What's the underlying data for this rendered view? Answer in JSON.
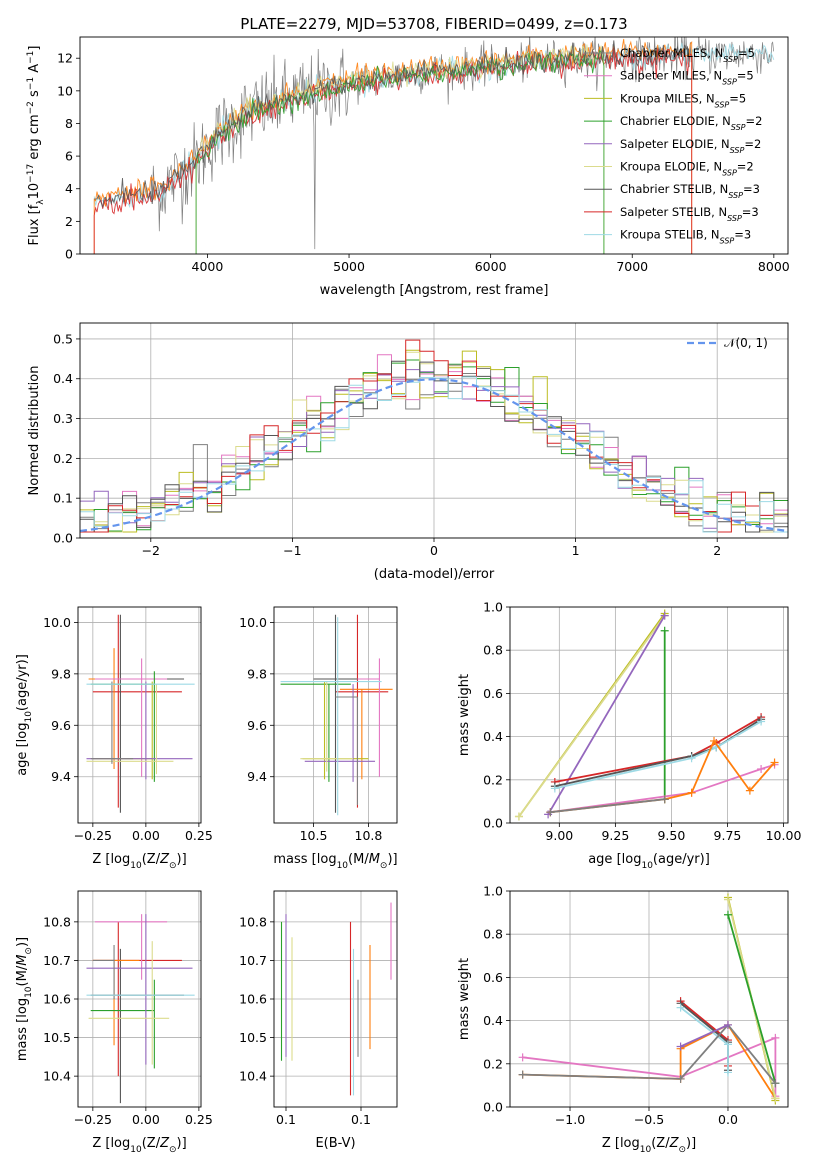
{
  "figure_title": "PLATE=2279, MJD=53708, FIBERID=0499, z=0.173",
  "colors": {
    "Chabrier MILES": "#7f7f7f",
    "Salpeter MILES": "#e377c2",
    "Kroupa MILES": "#bcbd22",
    "Chabrier ELODIE": "#2ca02c",
    "Salpeter ELODIE": "#9467bd",
    "Kroupa ELODIE": "#dbdb8d",
    "Chabrier STELIB": "#555555",
    "Salpeter STELIB": "#d62728",
    "Kroupa STELIB": "#9edae5",
    "extra_orange": "#ff7f0e",
    "normal": "#6495ed"
  },
  "chart_data": [
    {
      "id": "spectrum",
      "type": "line",
      "xlabel": "wavelength [Angstrom, rest frame]",
      "ylabel": "Flux [f_λ10^-17 erg cm^-2 s^-1 A^-1]",
      "xlim": [
        3100,
        8100
      ],
      "ylim": [
        0,
        13.3
      ],
      "xticks": [
        4000,
        5000,
        6000,
        7000,
        8000
      ],
      "yticks": [
        0,
        2,
        4,
        6,
        8,
        10,
        12
      ],
      "legend_position": "top-right",
      "legend": [
        "Chabrier MILES, N_SSP=5",
        "Salpeter MILES, N_SSP=5",
        "Kroupa MILES, N_SSP=5",
        "Chabrier ELODIE, N_SSP=2",
        "Salpeter ELODIE, N_SSP=2",
        "Kroupa ELODIE, N_SSP=2",
        "Chabrier STELIB, N_SSP=3",
        "Salpeter STELIB, N_SSP=3",
        "Kroupa STELIB, N_SSP=3"
      ],
      "continuum": {
        "x": [
          3200,
          3500,
          3650,
          3800,
          3950,
          4100,
          4300,
          4500,
          4800,
          5100,
          5500,
          5900,
          6300,
          6700,
          7000,
          7400,
          7800,
          8000
        ],
        "y": [
          3.2,
          3.5,
          3.8,
          4.8,
          6.0,
          7.5,
          8.7,
          9.3,
          10.0,
          10.6,
          11.1,
          11.4,
          11.8,
          12.0,
          12.1,
          12.2,
          12.3,
          12.3
        ]
      }
    },
    {
      "id": "residuals",
      "type": "line",
      "xlabel": "(data-model)/error",
      "ylabel": "Normed distribution",
      "xlim": [
        -2.5,
        2.5
      ],
      "ylim": [
        0,
        0.54
      ],
      "xticks": [
        -2,
        -1,
        0,
        1,
        2
      ],
      "yticks": [
        0.0,
        0.1,
        0.2,
        0.3,
        0.4,
        0.5
      ],
      "grid": true,
      "legend_position": "top-right",
      "legend": [
        "𝒩(0, 1)"
      ],
      "bin_width": 0.1
    },
    {
      "id": "age-vs-z",
      "type": "scatter",
      "xlabel": "Z [log10(Z/Z⊙)]",
      "ylabel": "age  [log10(age/yr)]",
      "xlim": [
        -0.32,
        0.26
      ],
      "ylim": [
        9.22,
        10.06
      ],
      "xticks": [
        -0.25,
        0.0,
        0.25
      ],
      "yticks": [
        9.4,
        9.6,
        9.8,
        10.0
      ],
      "grid": true,
      "points": [
        {
          "x": -0.13,
          "y": 9.73,
          "xerr": [
            0.12,
            0.3
          ],
          "yerr": [
            0.45,
            0.3
          ],
          "c": "Salpeter STELIB"
        },
        {
          "x": -0.12,
          "y": 9.78,
          "xerr": [
            0.14,
            0.3
          ],
          "yerr": [
            0.52,
            0.25
          ],
          "c": "Chabrier STELIB"
        },
        {
          "x": -0.15,
          "y": 9.78,
          "xerr": [
            0.12,
            0.12
          ],
          "yerr": [
            0.35,
            0.12
          ],
          "c": "extra_orange"
        },
        {
          "x": -0.02,
          "y": 9.78,
          "xerr": [
            0.22,
            0.12
          ],
          "yerr": [
            0.38,
            0.08
          ],
          "c": "Salpeter MILES"
        },
        {
          "x": 0.04,
          "y": 9.76,
          "xerr": [
            0.3,
            0.0
          ],
          "yerr": [
            0.38,
            0.05
          ],
          "c": "Chabrier ELODIE"
        },
        {
          "x": 0.03,
          "y": 9.47,
          "xerr": [
            0.28,
            0.0
          ],
          "yerr": [
            0.08,
            0.3
          ],
          "c": "Kroupa MILES"
        },
        {
          "x": 0.0,
          "y": 9.47,
          "xerr": [
            0.28,
            0.22
          ],
          "yerr": [
            0.08,
            0.3
          ],
          "c": "Salpeter ELODIE"
        },
        {
          "x": 0.05,
          "y": 9.46,
          "xerr": [
            0.33,
            0.08
          ],
          "yerr": [
            0.05,
            0.3
          ],
          "c": "Kroupa ELODIE"
        },
        {
          "x": -0.16,
          "y": 9.47,
          "xerr": [
            0.1,
            0.1
          ],
          "yerr": [
            0.02,
            0.3
          ],
          "c": "Chabrier MILES"
        },
        {
          "x": -0.12,
          "y": 9.76,
          "xerr": [
            0.16,
            0.35
          ],
          "yerr": [
            0.0,
            0.0
          ],
          "c": "Kroupa STELIB"
        }
      ]
    },
    {
      "id": "age-vs-mass",
      "type": "scatter",
      "xlabel": "mass [log10(M/M⊙)]",
      "ylabel": "",
      "xlim": [
        10.32,
        10.88
      ],
      "ylim": [
        9.22,
        10.06
      ],
      "xticks": [
        10.5,
        10.75
      ],
      "yticks": [
        9.4,
        9.6,
        9.8,
        10.0
      ],
      "grid": true,
      "points": [
        {
          "x": 10.7,
          "y": 9.73,
          "xerr": [
            0.1,
            0.14
          ],
          "yerr": [
            0.45,
            0.3
          ],
          "c": "Salpeter STELIB"
        },
        {
          "x": 10.6,
          "y": 9.78,
          "xerr": [
            0.1,
            0.14
          ],
          "yerr": [
            0.52,
            0.25
          ],
          "c": "Chabrier STELIB"
        },
        {
          "x": 10.72,
          "y": 9.74,
          "xerr": [
            0.1,
            0.14
          ],
          "yerr": [
            0.35,
            0.0
          ],
          "c": "extra_orange"
        },
        {
          "x": 10.8,
          "y": 9.78,
          "xerr": [
            0.1,
            0.0
          ],
          "yerr": [
            0.38,
            0.08
          ],
          "c": "Salpeter MILES"
        },
        {
          "x": 10.57,
          "y": 9.76,
          "xerr": [
            0.22,
            0.1
          ],
          "yerr": [
            0.38,
            0.0
          ],
          "c": "Chabrier ELODIE"
        },
        {
          "x": 10.55,
          "y": 9.47,
          "xerr": [
            0.1,
            0.2
          ],
          "yerr": [
            0.08,
            0.3
          ],
          "c": "Kroupa MILES"
        },
        {
          "x": 10.68,
          "y": 9.46,
          "xerr": [
            0.22,
            0.1
          ],
          "yerr": [
            0.08,
            0.3
          ],
          "c": "Salpeter ELODIE"
        },
        {
          "x": 10.56,
          "y": 9.47,
          "xerr": [
            0.12,
            0.12
          ],
          "yerr": [
            0.05,
            0.3
          ],
          "c": "Kroupa ELODIE"
        },
        {
          "x": 10.61,
          "y": 9.77,
          "xerr": [
            0.26,
            0.2
          ],
          "yerr": [
            0.52,
            0.25
          ],
          "c": "Kroupa STELIB"
        },
        {
          "x": 10.7,
          "y": 9.71,
          "xerr": [
            0.1,
            0.0
          ],
          "yerr": [
            0.42,
            0.0
          ],
          "c": "Chabrier MILES"
        }
      ]
    },
    {
      "id": "weight-vs-age",
      "type": "line",
      "xlabel": "age  [log10(age/yr)]",
      "ylabel": "mass weight",
      "xlim": [
        8.78,
        10.02
      ],
      "ylim": [
        0,
        1.0
      ],
      "xticks": [
        9.0,
        9.25,
        9.5,
        9.75,
        10.0
      ],
      "yticks": [
        0.0,
        0.2,
        0.4,
        0.6,
        0.8,
        1.0
      ],
      "grid": true,
      "series": [
        {
          "c": "Kroupa MILES",
          "x": [
            8.82,
            9.47
          ],
          "y": [
            0.03,
            0.97
          ]
        },
        {
          "c": "Kroupa ELODIE",
          "x": [
            8.82,
            9.47
          ],
          "y": [
            0.03,
            0.96
          ]
        },
        {
          "c": "Salpeter ELODIE",
          "x": [
            8.95,
            9.47
          ],
          "y": [
            0.04,
            0.96
          ]
        },
        {
          "c": "Chabrier ELODIE",
          "x": [
            9.47,
            9.47
          ],
          "y": [
            0.11,
            0.89
          ]
        },
        {
          "c": "Salpeter STELIB",
          "x": [
            8.98,
            9.59,
            9.7,
            9.9
          ],
          "y": [
            0.19,
            0.31,
            0.37,
            0.49
          ]
        },
        {
          "c": "Chabrier STELIB",
          "x": [
            8.98,
            9.59,
            9.7,
            9.9
          ],
          "y": [
            0.17,
            0.31,
            0.35,
            0.48
          ]
        },
        {
          "c": "Kroupa STELIB",
          "x": [
            8.98,
            9.59,
            9.7,
            9.9
          ],
          "y": [
            0.16,
            0.3,
            0.35,
            0.47
          ]
        },
        {
          "c": "Salpeter MILES",
          "x": [
            8.96,
            9.59,
            9.9,
            9.96
          ],
          "y": [
            0.05,
            0.14,
            0.25,
            0.27
          ]
        },
        {
          "c": "extra_orange",
          "x": [
            8.96,
            9.47,
            9.59,
            9.69,
            9.85,
            9.96
          ],
          "y": [
            0.05,
            0.11,
            0.14,
            0.38,
            0.15,
            0.28
          ]
        },
        {
          "c": "Chabrier MILES",
          "x": [
            8.96,
            9.47
          ],
          "y": [
            0.05,
            0.11
          ]
        }
      ]
    },
    {
      "id": "mass-vs-z",
      "type": "scatter",
      "xlabel": "Z [log10(Z/Z⊙)]",
      "ylabel": "mass [log10(M/M⊙)]",
      "xlim": [
        -0.32,
        0.26
      ],
      "ylim": [
        10.32,
        10.88
      ],
      "xticks": [
        -0.25,
        0.0,
        0.25
      ],
      "yticks": [
        10.4,
        10.5,
        10.6,
        10.7,
        10.8
      ],
      "grid": true,
      "points": [
        {
          "x": -0.13,
          "y": 10.7,
          "xerr": [
            0.12,
            0.3
          ],
          "yerr": [
            0.3,
            0.1
          ],
          "c": "Salpeter STELIB"
        },
        {
          "x": -0.12,
          "y": 10.61,
          "xerr": [
            0.14,
            0.3
          ],
          "yerr": [
            0.28,
            0.12
          ],
          "c": "Chabrier STELIB"
        },
        {
          "x": -0.15,
          "y": 10.7,
          "xerr": [
            0.1,
            0.12
          ],
          "yerr": [
            0.22,
            0.0
          ],
          "c": "extra_orange"
        },
        {
          "x": -0.02,
          "y": 10.8,
          "xerr": [
            0.22,
            0.12
          ],
          "yerr": [
            0.15,
            0.02
          ],
          "c": "Salpeter MILES"
        },
        {
          "x": 0.04,
          "y": 10.57,
          "xerr": [
            0.3,
            0.0
          ],
          "yerr": [
            0.15,
            0.08
          ],
          "c": "Chabrier ELODIE"
        },
        {
          "x": 0.0,
          "y": 10.68,
          "xerr": [
            0.28,
            0.22
          ],
          "yerr": [
            0.25,
            0.14
          ],
          "c": "Salpeter ELODIE"
        },
        {
          "x": 0.03,
          "y": 10.55,
          "xerr": [
            0.3,
            0.08
          ],
          "yerr": [
            0.12,
            0.2
          ],
          "c": "Kroupa ELODIE"
        },
        {
          "x": -0.15,
          "y": 10.7,
          "xerr": [
            0.1,
            0.0
          ],
          "yerr": [
            0.1,
            0.04
          ],
          "c": "Chabrier MILES"
        },
        {
          "x": -0.12,
          "y": 10.61,
          "xerr": [
            0.16,
            0.35
          ],
          "yerr": [
            0.0,
            0.0
          ],
          "c": "Kroupa STELIB"
        }
      ]
    },
    {
      "id": "mass-vs-ebv",
      "type": "scatter",
      "xlabel": "E(B-V)",
      "ylabel": "",
      "xlim": [
        0.092,
        0.174
      ],
      "ylim": [
        10.32,
        10.88
      ],
      "xticks": [
        0.1,
        0.15
      ],
      "yticks": [
        10.4,
        10.5,
        10.6,
        10.7,
        10.8
      ],
      "grid": true,
      "points": [
        {
          "x": 0.097,
          "y": 10.6,
          "yerr": [
            0.16,
            0.2
          ],
          "c": "Chabrier ELODIE"
        },
        {
          "x": 0.1,
          "y": 10.7,
          "yerr": [
            0.25,
            0.12
          ],
          "c": "Salpeter ELODIE"
        },
        {
          "x": 0.104,
          "y": 10.6,
          "yerr": [
            0.16,
            0.16
          ],
          "c": "Kroupa ELODIE"
        },
        {
          "x": 0.143,
          "y": 10.6,
          "yerr": [
            0.25,
            0.2
          ],
          "c": "Salpeter STELIB"
        },
        {
          "x": 0.145,
          "y": 10.55,
          "yerr": [
            0.2,
            0.18
          ],
          "c": "Kroupa STELIB"
        },
        {
          "x": 0.148,
          "y": 10.55,
          "yerr": [
            0.1,
            0.1
          ],
          "c": "Chabrier MILES"
        },
        {
          "x": 0.156,
          "y": 10.62,
          "yerr": [
            0.15,
            0.12
          ],
          "c": "extra_orange"
        },
        {
          "x": 0.17,
          "y": 10.75,
          "yerr": [
            0.1,
            0.1
          ],
          "c": "Salpeter MILES"
        }
      ]
    },
    {
      "id": "weight-vs-z",
      "type": "line",
      "xlabel": "Z [log10(Z/Z⊙)]",
      "ylabel": "mass weight",
      "xlim": [
        -1.38,
        0.38
      ],
      "ylim": [
        0,
        1.0
      ],
      "xticks": [
        -1.0,
        -0.5,
        0.0
      ],
      "yticks": [
        0.0,
        0.2,
        0.4,
        0.6,
        0.8,
        1.0
      ],
      "grid": true,
      "series": [
        {
          "c": "Salpeter MILES",
          "x": [
            -1.3,
            -0.3,
            0.3,
            0.3
          ],
          "y": [
            0.23,
            0.14,
            0.32,
            0.05
          ]
        },
        {
          "c": "extra_orange",
          "x": [
            -1.3,
            -0.3,
            -0.3,
            0.0,
            0.3
          ],
          "y": [
            0.15,
            0.13,
            0.27,
            0.38,
            0.04
          ]
        },
        {
          "c": "Salpeter STELIB",
          "x": [
            -0.3,
            0.0,
            0.0
          ],
          "y": [
            0.49,
            0.31,
            0.19
          ]
        },
        {
          "c": "Chabrier STELIB",
          "x": [
            -0.3,
            0.0,
            0.0
          ],
          "y": [
            0.48,
            0.3,
            0.17
          ]
        },
        {
          "c": "Kroupa STELIB",
          "x": [
            -0.3,
            0.0,
            0.0
          ],
          "y": [
            0.46,
            0.29,
            0.16
          ]
        },
        {
          "c": "Kroupa MILES",
          "x": [
            0.0,
            0.3
          ],
          "y": [
            0.97,
            0.03
          ]
        },
        {
          "c": "Kroupa ELODIE",
          "x": [
            0.0,
            0.3
          ],
          "y": [
            0.96,
            0.04
          ]
        },
        {
          "c": "Chabrier ELODIE",
          "x": [
            0.0,
            0.3
          ],
          "y": [
            0.89,
            0.11
          ]
        },
        {
          "c": "Chabrier MILES",
          "x": [
            -1.3,
            -0.3,
            0.0,
            0.3
          ],
          "y": [
            0.15,
            0.13,
            0.38,
            0.11
          ]
        },
        {
          "c": "Salpeter ELODIE",
          "x": [
            -0.3,
            0.0
          ],
          "y": [
            0.28,
            0.38
          ]
        }
      ]
    }
  ]
}
